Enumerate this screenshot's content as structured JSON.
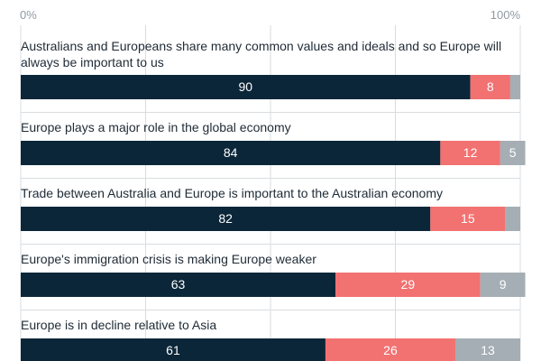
{
  "chart_data": {
    "type": "bar",
    "orientation": "horizontal",
    "stacked": true,
    "x_ticks": [
      "0%",
      "100%"
    ],
    "xlim": [
      0,
      100
    ],
    "grid": true,
    "categories": [
      "Australians and Europeans share many common values and ideals and so Europe will always be important to us",
      "Europe plays a major role in the global economy",
      "Trade between Australia and Europe is important to the Australian economy",
      "Europe's immigration crisis is making Europe weaker",
      "Europe is in decline relative to Asia"
    ],
    "series": [
      {
        "values": [
          90,
          84,
          82,
          63,
          61
        ],
        "color": "#0b2639"
      },
      {
        "values": [
          8,
          12,
          15,
          29,
          26
        ],
        "color": "#f27171"
      },
      {
        "values": [
          2,
          5,
          3,
          9,
          13
        ],
        "color": "#a5aeb4"
      }
    ],
    "data_labels": [
      [
        "90",
        "8",
        ""
      ],
      [
        "84",
        "12",
        "5"
      ],
      [
        "82",
        "15",
        ""
      ],
      [
        "63",
        "29",
        "9"
      ],
      [
        "61",
        "26",
        "13"
      ]
    ]
  }
}
